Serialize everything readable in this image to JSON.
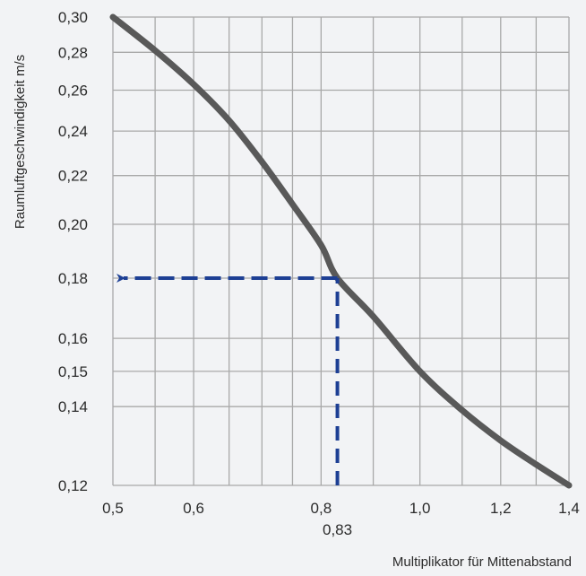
{
  "chart_data": {
    "type": "line",
    "xscale": "log",
    "yscale": "log",
    "xlabel": "Multiplikator für Mittenabstand",
    "ylabel": "Raumluftgeschwindigkeit m/s",
    "xlim": [
      0.5,
      1.4
    ],
    "ylim": [
      0.12,
      0.3
    ],
    "x_ticks": [
      {
        "value": 0.5,
        "label": "0,5"
      },
      {
        "value": 0.6,
        "label": "0,6"
      },
      {
        "value": 0.8,
        "label": "0,8"
      },
      {
        "value": 1.0,
        "label": "1,0"
      },
      {
        "value": 1.2,
        "label": "1,2"
      },
      {
        "value": 1.4,
        "label": "1,4"
      }
    ],
    "x_grid": [
      0.5,
      0.55,
      0.6,
      0.65,
      0.7,
      0.75,
      0.8,
      0.9,
      1.0,
      1.1,
      1.2,
      1.3,
      1.4
    ],
    "y_ticks": [
      {
        "value": 0.3,
        "label": "0,30"
      },
      {
        "value": 0.28,
        "label": "0,28"
      },
      {
        "value": 0.26,
        "label": "0,26"
      },
      {
        "value": 0.24,
        "label": "0,24"
      },
      {
        "value": 0.22,
        "label": "0,22"
      },
      {
        "value": 0.2,
        "label": "0,20"
      },
      {
        "value": 0.18,
        "label": "0,18"
      },
      {
        "value": 0.16,
        "label": "0,16"
      },
      {
        "value": 0.15,
        "label": "0,15"
      },
      {
        "value": 0.14,
        "label": "0,14"
      },
      {
        "value": 0.12,
        "label": "0,12"
      }
    ],
    "series": [
      {
        "color": "#595959",
        "x": [
          0.5,
          0.55,
          0.6,
          0.65,
          0.7,
          0.75,
          0.8,
          0.83,
          0.9,
          1.0,
          1.1,
          1.2,
          1.3,
          1.4
        ],
        "y": [
          0.3,
          0.281,
          0.263,
          0.245,
          0.226,
          0.208,
          0.192,
          0.18,
          0.167,
          0.15,
          0.139,
          0.131,
          0.125,
          0.12
        ]
      }
    ],
    "annotation": {
      "x": 0.83,
      "y": 0.18,
      "x_label": "0,83",
      "color": "#1d3f94"
    },
    "grid": true
  }
}
